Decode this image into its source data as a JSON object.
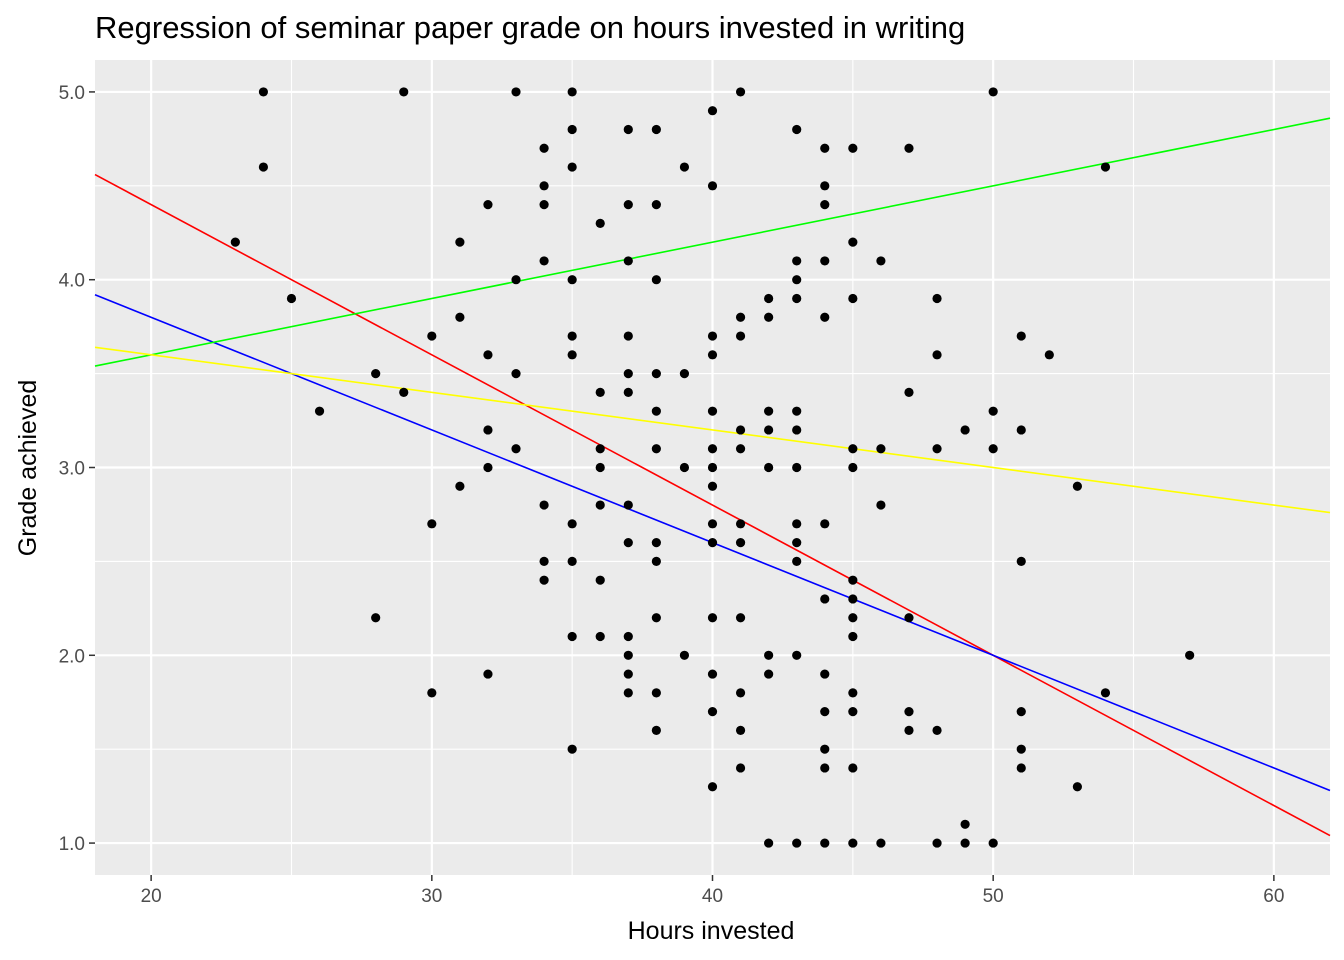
{
  "chart_data": {
    "type": "scatter",
    "title": "Regression of seminar paper grade on hours invested in writing",
    "xlabel": "Hours invested",
    "ylabel": "Grade achieved",
    "xlim": [
      18,
      62
    ],
    "ylim": [
      0.83,
      5.17
    ],
    "x_ticks": [
      20,
      30,
      40,
      50,
      60
    ],
    "x_tick_labels": [
      "20",
      "30",
      "40",
      "50",
      "60"
    ],
    "y_ticks": [
      1,
      2,
      3,
      4,
      5
    ],
    "y_tick_labels": [
      "1.0",
      "2.0",
      "3.0",
      "4.0",
      "5.0"
    ],
    "grid": true,
    "background": "#ebebeb",
    "point_color": "#000000",
    "points": [
      [
        23,
        4.2
      ],
      [
        24,
        5.0
      ],
      [
        24,
        4.6
      ],
      [
        25,
        3.9
      ],
      [
        26,
        3.3
      ],
      [
        28,
        3.5
      ],
      [
        28,
        2.2
      ],
      [
        29,
        5.0
      ],
      [
        29,
        3.4
      ],
      [
        30,
        3.7
      ],
      [
        30,
        2.7
      ],
      [
        30,
        1.8
      ],
      [
        31,
        4.2
      ],
      [
        31,
        3.8
      ],
      [
        31,
        2.9
      ],
      [
        32,
        4.4
      ],
      [
        32,
        3.6
      ],
      [
        32,
        3.2
      ],
      [
        32,
        3.0
      ],
      [
        32,
        1.9
      ],
      [
        33,
        5.0
      ],
      [
        33,
        4.0
      ],
      [
        33,
        3.5
      ],
      [
        33,
        3.1
      ],
      [
        34,
        4.7
      ],
      [
        34,
        4.5
      ],
      [
        34,
        4.4
      ],
      [
        34,
        4.1
      ],
      [
        34,
        2.8
      ],
      [
        34,
        2.5
      ],
      [
        34,
        2.4
      ],
      [
        35,
        5.0
      ],
      [
        35,
        4.8
      ],
      [
        35,
        4.6
      ],
      [
        35,
        4.0
      ],
      [
        35,
        3.7
      ],
      [
        35,
        3.6
      ],
      [
        35,
        2.7
      ],
      [
        35,
        2.5
      ],
      [
        35,
        2.1
      ],
      [
        35,
        1.5
      ],
      [
        36,
        4.3
      ],
      [
        36,
        3.4
      ],
      [
        36,
        3.1
      ],
      [
        36,
        3.0
      ],
      [
        36,
        2.8
      ],
      [
        36,
        2.4
      ],
      [
        36,
        2.1
      ],
      [
        37,
        4.8
      ],
      [
        37,
        4.4
      ],
      [
        37,
        4.1
      ],
      [
        37,
        3.7
      ],
      [
        37,
        3.5
      ],
      [
        37,
        3.4
      ],
      [
        37,
        2.8
      ],
      [
        37,
        2.6
      ],
      [
        37,
        2.1
      ],
      [
        37,
        2.0
      ],
      [
        37,
        1.9
      ],
      [
        37,
        1.8
      ],
      [
        38,
        4.8
      ],
      [
        38,
        4.4
      ],
      [
        38,
        4.0
      ],
      [
        38,
        3.5
      ],
      [
        38,
        3.3
      ],
      [
        38,
        3.1
      ],
      [
        38,
        2.6
      ],
      [
        38,
        2.5
      ],
      [
        38,
        2.2
      ],
      [
        38,
        1.8
      ],
      [
        38,
        1.6
      ],
      [
        39,
        4.6
      ],
      [
        39,
        3.5
      ],
      [
        39,
        3.0
      ],
      [
        39,
        2.0
      ],
      [
        40,
        4.9
      ],
      [
        40,
        4.5
      ],
      [
        40,
        3.7
      ],
      [
        40,
        3.6
      ],
      [
        40,
        3.3
      ],
      [
        40,
        3.1
      ],
      [
        40,
        3.0
      ],
      [
        40,
        2.9
      ],
      [
        40,
        2.7
      ],
      [
        40,
        2.6
      ],
      [
        40,
        2.2
      ],
      [
        40,
        1.9
      ],
      [
        40,
        1.7
      ],
      [
        40,
        1.3
      ],
      [
        41,
        5.0
      ],
      [
        41,
        3.8
      ],
      [
        41,
        3.7
      ],
      [
        41,
        3.2
      ],
      [
        41,
        3.1
      ],
      [
        41,
        2.7
      ],
      [
        41,
        2.6
      ],
      [
        41,
        2.2
      ],
      [
        41,
        1.8
      ],
      [
        41,
        1.6
      ],
      [
        41,
        1.4
      ],
      [
        42,
        3.9
      ],
      [
        42,
        3.8
      ],
      [
        42,
        3.3
      ],
      [
        42,
        3.2
      ],
      [
        42,
        3.0
      ],
      [
        42,
        2.0
      ],
      [
        42,
        1.9
      ],
      [
        42,
        1.0
      ],
      [
        43,
        4.8
      ],
      [
        43,
        4.1
      ],
      [
        43,
        4.0
      ],
      [
        43,
        3.9
      ],
      [
        43,
        3.3
      ],
      [
        43,
        3.2
      ],
      [
        43,
        3.0
      ],
      [
        43,
        2.7
      ],
      [
        43,
        2.6
      ],
      [
        43,
        2.5
      ],
      [
        43,
        2.0
      ],
      [
        43,
        1.0
      ],
      [
        44,
        4.7
      ],
      [
        44,
        4.5
      ],
      [
        44,
        4.4
      ],
      [
        44,
        4.1
      ],
      [
        44,
        3.8
      ],
      [
        44,
        2.7
      ],
      [
        44,
        2.3
      ],
      [
        44,
        1.9
      ],
      [
        44,
        1.7
      ],
      [
        44,
        1.5
      ],
      [
        44,
        1.4
      ],
      [
        44,
        1.0
      ],
      [
        45,
        4.7
      ],
      [
        45,
        4.2
      ],
      [
        45,
        3.9
      ],
      [
        45,
        3.1
      ],
      [
        45,
        3.0
      ],
      [
        45,
        2.4
      ],
      [
        45,
        2.3
      ],
      [
        45,
        2.2
      ],
      [
        45,
        2.1
      ],
      [
        45,
        1.8
      ],
      [
        45,
        1.7
      ],
      [
        45,
        1.4
      ],
      [
        45,
        1.0
      ],
      [
        46,
        4.1
      ],
      [
        46,
        3.1
      ],
      [
        46,
        2.8
      ],
      [
        46,
        1.0
      ],
      [
        47,
        4.7
      ],
      [
        47,
        3.4
      ],
      [
        47,
        2.2
      ],
      [
        47,
        1.7
      ],
      [
        47,
        1.6
      ],
      [
        48,
        3.9
      ],
      [
        48,
        3.6
      ],
      [
        48,
        3.1
      ],
      [
        48,
        1.6
      ],
      [
        48,
        1.0
      ],
      [
        49,
        3.2
      ],
      [
        49,
        1.1
      ],
      [
        49,
        1.0
      ],
      [
        50,
        5.0
      ],
      [
        50,
        3.3
      ],
      [
        50,
        3.1
      ],
      [
        50,
        1.0
      ],
      [
        51,
        3.7
      ],
      [
        51,
        3.2
      ],
      [
        51,
        2.5
      ],
      [
        51,
        1.7
      ],
      [
        51,
        1.5
      ],
      [
        51,
        1.4
      ],
      [
        52,
        3.6
      ],
      [
        53,
        2.9
      ],
      [
        53,
        1.3
      ],
      [
        54,
        4.6
      ],
      [
        54,
        1.8
      ],
      [
        57,
        2.0
      ]
    ],
    "lines": [
      {
        "color": "#ff0000",
        "slope": -0.08,
        "intercept": 6.0
      },
      {
        "color": "#0000ff",
        "slope": -0.06,
        "intercept": 5.0
      },
      {
        "color": "#00ff00",
        "slope": 0.03,
        "intercept": 3.0
      },
      {
        "color": "#ffff00",
        "slope": -0.02,
        "intercept": 4.0
      }
    ]
  }
}
